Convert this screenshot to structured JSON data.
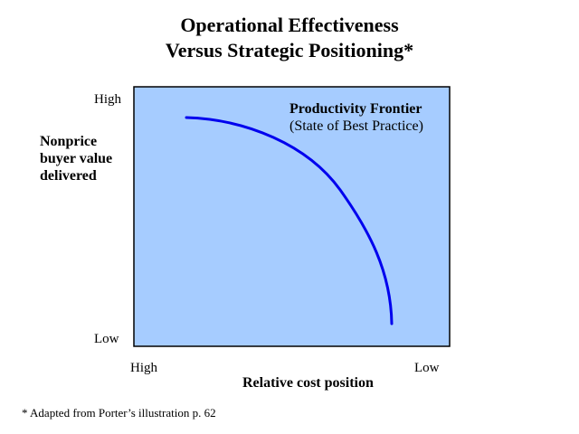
{
  "colors": {
    "plot_bg": "#a6ccff",
    "plot_border": "#000000",
    "curve": "#0000ee"
  },
  "title": {
    "line1": "Operational Effectiveness",
    "line2": "Versus Strategic Positioning*"
  },
  "y_axis": {
    "high_label": "High",
    "low_label": "Low",
    "title_lines": [
      "Nonprice",
      "buyer value",
      "delivered"
    ]
  },
  "x_axis": {
    "high_label": "High",
    "low_label": "Low",
    "title": "Relative cost position"
  },
  "frontier": {
    "title": "Productivity Frontier",
    "subtitle": "(State of Best Practice)"
  },
  "footnote": "* Adapted from Porter’s illustration p. 62"
}
